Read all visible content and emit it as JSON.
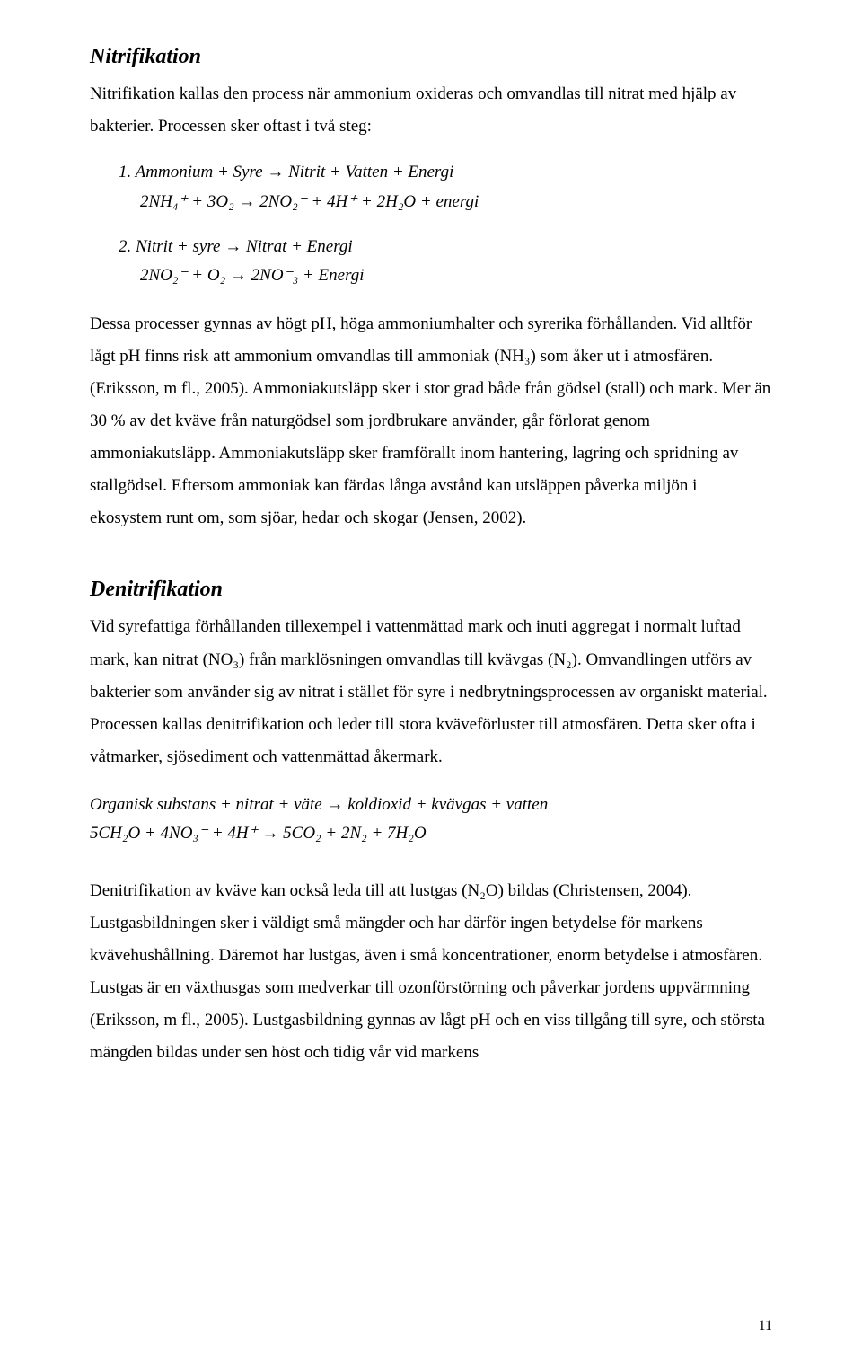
{
  "section1": {
    "heading": "Nitrifikation",
    "intro": "Nitrifikation kallas den process när ammonium oxideras och omvandlas till nitrat med hjälp av bakterier. Processen sker oftast i två steg:",
    "eq1_label": "1.   Ammonium + Syre → Nitrit + Vatten + Energi",
    "eq1_expr": "2NH₄⁺ + 3O₂ → 2NO₂⁻ + 4H⁺ + 2H₂O + energi",
    "eq2_label": "2.   Nitrit + syre → Nitrat + Energi",
    "eq2_expr": "2NO₂⁻ + O₂ → 2NO⁻₃ + Energi",
    "body": "Dessa processer gynnas av högt pH, höga ammoniumhalter och syrerika förhållanden. Vid alltför lågt pH finns risk att ammonium omvandlas till ammoniak (NH₃) som åker ut i atmosfären. (Eriksson, m fl., 2005). Ammoniakutsläpp sker i stor grad både från gödsel (stall) och mark. Mer än 30 % av det kväve från naturgödsel som jordbrukare använder, går förlorat genom ammoniakutsläpp. Ammoniakutsläpp sker framförallt inom hantering, lagring och spridning av stallgödsel. Eftersom ammoniak kan färdas långa avstånd kan utsläppen påverka miljön i ekosystem runt om, som sjöar, hedar och skogar (Jensen, 2002)."
  },
  "section2": {
    "heading": "Denitrifikation",
    "para1": "Vid syrefattiga förhållanden tillexempel i vattenmättad mark och inuti aggregat i normalt luftad mark, kan nitrat (NO₃) från marklösningen omvandlas till kvävgas (N₂). Omvandlingen utförs av bakterier som använder sig av nitrat i stället för syre i nedbrytningsprocessen av organiskt material. Processen kallas denitrifikation och leder till stora kväveförluster till atmosfären. Detta sker ofta i våtmarker, sjösediment och vattenmättad åkermark.",
    "eq_label": "Organisk substans + nitrat + väte → koldioxid + kvävgas + vatten",
    "eq_expr": " 5CH₂O + 4NO₃⁻ + 4H⁺ → 5CO₂ + 2N₂ + 7H₂O",
    "para2": "Denitrifikation av kväve kan också leda till att lustgas (N₂O) bildas (Christensen, 2004). Lustgasbildningen sker i väldigt små mängder och har därför ingen betydelse för markens kvävehushållning. Däremot har lustgas, även i små koncentrationer, enorm betydelse i atmosfären. Lustgas är en växthusgas som medverkar till ozonförstörning och påverkar jordens uppvärmning (Eriksson, m fl., 2005). Lustgasbildning gynnas av lågt pH och en viss tillgång till syre, och största mängden bildas under sen höst och tidig vår vid markens"
  },
  "page_number": "11"
}
